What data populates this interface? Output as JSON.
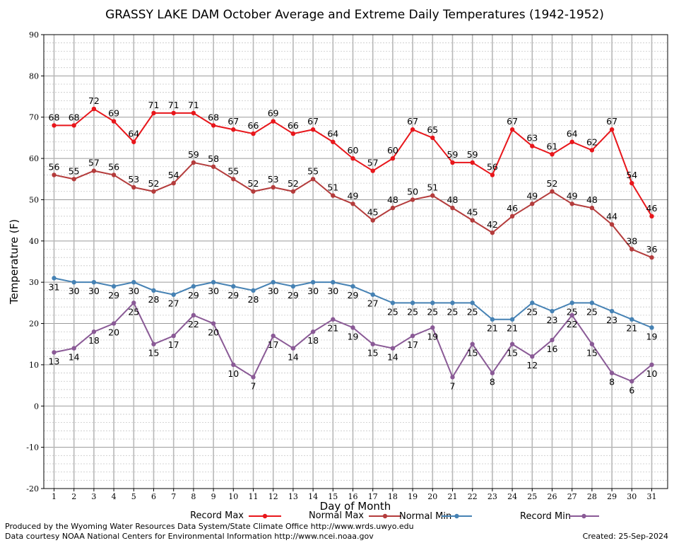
{
  "chart_data": {
    "type": "line",
    "title": "GRASSY LAKE DAM October Average and Extreme Daily Temperatures (1942-1952)",
    "xlabel": "Day of Month",
    "ylabel": "Temperature (F)",
    "ylim": [
      -20,
      90
    ],
    "yticks": [
      -20,
      -10,
      0,
      10,
      20,
      30,
      40,
      50,
      60,
      70,
      80,
      90
    ],
    "x": [
      1,
      2,
      3,
      4,
      5,
      6,
      7,
      8,
      9,
      10,
      11,
      12,
      13,
      14,
      15,
      16,
      17,
      18,
      19,
      20,
      21,
      22,
      23,
      24,
      25,
      26,
      27,
      28,
      29,
      30,
      31
    ],
    "grid": true,
    "legend_position": "bottom",
    "series": [
      {
        "name": "Record Max",
        "color": "#e8161b",
        "label_pos": "above",
        "values": [
          68,
          68,
          72,
          69,
          64,
          71,
          71,
          71,
          68,
          67,
          66,
          69,
          66,
          67,
          64,
          60,
          57,
          60,
          67,
          65,
          59,
          59,
          56,
          67,
          63,
          61,
          64,
          62,
          67,
          54,
          46
        ]
      },
      {
        "name": "Normal Max",
        "color": "#b43c3c",
        "label_pos": "above",
        "values": [
          56,
          55,
          57,
          56,
          53,
          52,
          54,
          59,
          58,
          55,
          52,
          53,
          52,
          55,
          51,
          49,
          45,
          48,
          50,
          51,
          48,
          45,
          42,
          46,
          49,
          52,
          49,
          48,
          44,
          38,
          36
        ]
      },
      {
        "name": "Normal Min",
        "color": "#4682b4",
        "label_pos": "below",
        "values": [
          31,
          30,
          30,
          29,
          30,
          28,
          27,
          29,
          30,
          29,
          28,
          30,
          29,
          30,
          30,
          29,
          27,
          25,
          25,
          25,
          25,
          25,
          21,
          21,
          25,
          23,
          25,
          25,
          23,
          21,
          19
        ]
      },
      {
        "name": "Record Min",
        "color": "#8a5a96",
        "label_pos": "below",
        "values": [
          13,
          14,
          18,
          20,
          25,
          15,
          17,
          22,
          20,
          10,
          7,
          17,
          14,
          18,
          21,
          19,
          15,
          14,
          17,
          19,
          7,
          15,
          8,
          15,
          12,
          16,
          22,
          15,
          8,
          6,
          10
        ]
      }
    ]
  },
  "footer": {
    "produced_by": "Produced by the Wyoming Water Resources Data System/State Climate Office http://www.wrds.uwyo.edu",
    "courtesy": "Data courtesy NOAA National Centers for Environmental Information http://www.ncei.noaa.gov",
    "created": "Created:  25-Sep-2024"
  }
}
